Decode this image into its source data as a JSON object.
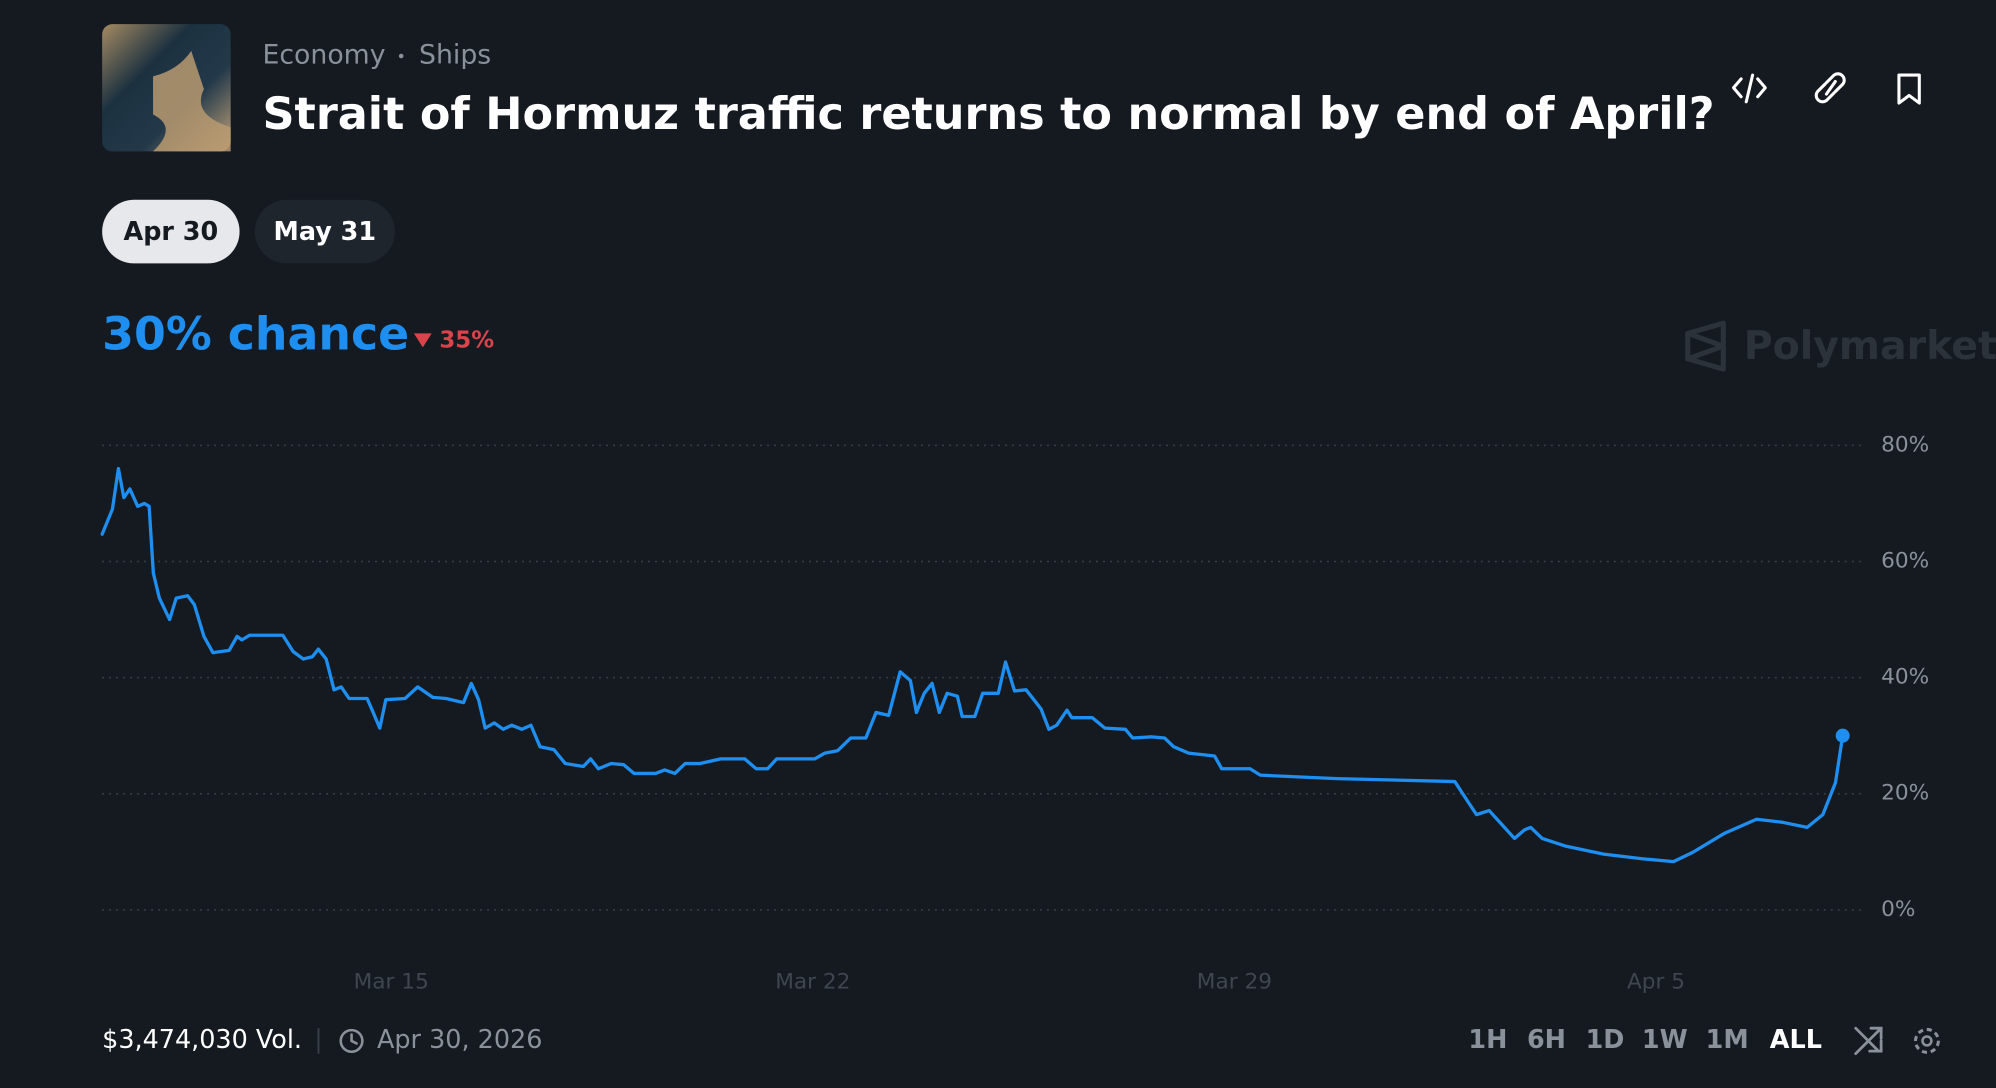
{
  "header": {
    "category": "Economy",
    "subcategory": "Ships",
    "title": "Strait of Hormuz traffic returns to normal by end of April?"
  },
  "tabs": [
    "Apr 30",
    "May 31"
  ],
  "summary": {
    "chance": "30% chance",
    "change": "35%"
  },
  "brand": "Polymarket",
  "footer": {
    "volume": "$3,474,030 Vol.",
    "end_date": "Apr 30, 2026",
    "ranges": [
      "1H",
      "6H",
      "1D",
      "1W",
      "1M",
      "ALL"
    ],
    "active_range": "ALL"
  },
  "chart_data": {
    "type": "line",
    "x": [
      10.2,
      10.37,
      10.47,
      10.56,
      10.66,
      10.79,
      10.9,
      10.98,
      11.05,
      11.15,
      11.32,
      11.43,
      11.62,
      11.73,
      11.89,
      12.04,
      12.31,
      12.44,
      12.52,
      12.65,
      13.2,
      13.37,
      13.54,
      13.69,
      13.79,
      13.92,
      14.05,
      14.17,
      14.3,
      14.6,
      14.7,
      14.81,
      14.91,
      15.23,
      15.44,
      15.69,
      15.91,
      16.2,
      16.33,
      16.45,
      16.56,
      16.71,
      16.86,
      17,
      17.17,
      17.32,
      17.47,
      17.7,
      17.89,
      18.19,
      18.31,
      18.44,
      18.65,
      18.86,
      19.03,
      19.39,
      19.54,
      19.71,
      19.88,
      20.13,
      20.47,
      20.87,
      21.06,
      21.25,
      21.4,
      22.03,
      22.2,
      22.41,
      22.63,
      22.88,
      23.05,
      23.26,
      23.45,
      23.62,
      23.72,
      23.85,
      23.98,
      24.1,
      24.23,
      24.4,
      24.48,
      24.69,
      24.82,
      25.08,
      25.2,
      25.35,
      25.54,
      25.67,
      25.79,
      25.92,
      26.05,
      26.22,
      26.3,
      26.64,
      26.85,
      27.19,
      27.31,
      27.63,
      27.84,
      27.99,
      28.24,
      28.67,
      28.79,
      29.26,
      29.43,
      30.7,
      32.66,
      32.81,
      33.02,
      33.23,
      33.44,
      33.65,
      33.82,
      33.92,
      34.11,
      34.49,
      35.13,
      35.77,
      36.29,
      36.61,
      37.14,
      37.67,
      38.09,
      38.51,
      38.77,
      38.98,
      39.1
    ],
    "series": [
      {
        "name": "Apr 30",
        "color": "#1e8ff0",
        "values": [
          64.7,
          69,
          76,
          71,
          72.5,
          69.5,
          70,
          69.5,
          58,
          53.7,
          50,
          53.7,
          54.1,
          52.6,
          47.1,
          44.3,
          44.7,
          47.1,
          46.5,
          47.3,
          47.3,
          44.5,
          43.2,
          43.6,
          44.9,
          43.2,
          37.9,
          38.4,
          36.4,
          36.4,
          34,
          31.3,
          36.2,
          36.4,
          38.4,
          36.6,
          36.4,
          35.7,
          39,
          36.2,
          31.3,
          32.2,
          31.1,
          31.8,
          31.1,
          31.8,
          28.1,
          27.6,
          25.2,
          24.7,
          26,
          24.3,
          25.2,
          25,
          23.5,
          23.5,
          24.1,
          23.5,
          25.2,
          25.2,
          26,
          26,
          24.3,
          24.3,
          26,
          26,
          27,
          27.4,
          29.6,
          29.6,
          34,
          33.5,
          41,
          39.5,
          34,
          37.3,
          39,
          34,
          37.3,
          36.8,
          33.3,
          33.3,
          37.3,
          37.3,
          42.7,
          37.7,
          37.9,
          36.2,
          34.6,
          31.1,
          31.8,
          34.4,
          33.1,
          33.1,
          31.3,
          31.1,
          29.6,
          29.8,
          29.6,
          28.1,
          27,
          26.5,
          24.3,
          24.3,
          23.2,
          22.6,
          22.1,
          19.7,
          16.4,
          17.1,
          14.7,
          12.3,
          13.8,
          14.2,
          12.3,
          11,
          9.6,
          8.8,
          8.3,
          9.9,
          13.2,
          15.6,
          15.1,
          14.2,
          16.4,
          21.9,
          30
        ]
      }
    ],
    "xlim": [
      10.2,
      39.4
    ],
    "xticks": [
      {
        "value": 15,
        "label": "Mar 15"
      },
      {
        "value": 22,
        "label": "Mar 22"
      },
      {
        "value": 29,
        "label": "Mar 29"
      },
      {
        "value": 36,
        "label": "Apr 5"
      }
    ],
    "ylim": [
      0,
      80
    ],
    "yticks": [
      {
        "value": 0,
        "label": "0%"
      },
      {
        "value": 20,
        "label": "20%"
      },
      {
        "value": 40,
        "label": "40%"
      },
      {
        "value": 60,
        "label": "60%"
      },
      {
        "value": 80,
        "label": "80%"
      }
    ],
    "grid": true
  }
}
